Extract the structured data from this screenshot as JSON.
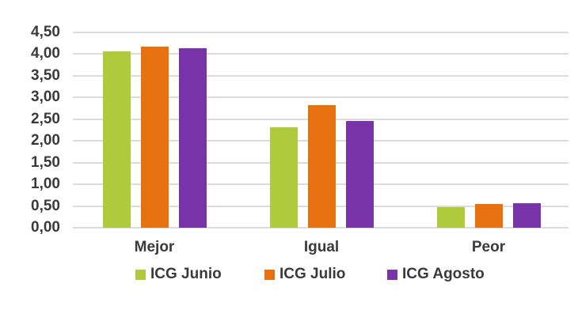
{
  "chart_data": {
    "type": "bar",
    "title": "",
    "xlabel": "",
    "ylabel": "",
    "categories": [
      "Mejor",
      "Igual",
      "Peor"
    ],
    "series": [
      {
        "name": "ICG Junio",
        "color": "#afca3a",
        "values": [
          4.06,
          2.31,
          0.47
        ]
      },
      {
        "name": "ICG Julio",
        "color": "#e6710e",
        "values": [
          4.17,
          2.82,
          0.55
        ]
      },
      {
        "name": "ICG Agosto",
        "color": "#7933a8",
        "values": [
          4.13,
          2.46,
          0.56
        ]
      }
    ],
    "ylim": [
      0,
      4.5
    ],
    "ytick_step": 0.5,
    "ytick_labels": [
      "4,50",
      "4,00",
      "3,50",
      "3,00",
      "2,50",
      "2,00",
      "1,50",
      "1,00",
      "0,50",
      "0,00"
    ],
    "decimal_separator": ",",
    "grid": true,
    "legend_position": "bottom"
  },
  "colors": {
    "background": "#ffffff",
    "gridline": "#dcdcdc",
    "text": "#3a3a3a"
  }
}
